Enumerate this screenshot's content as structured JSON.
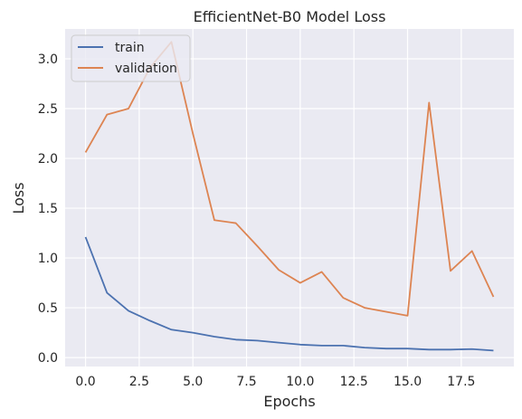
{
  "chart_data": {
    "type": "line",
    "title": "EfficientNet-B0 Model Loss",
    "xlabel": "Epochs",
    "ylabel": "Loss",
    "xlim": [
      -0.95,
      19.95
    ],
    "ylim": [
      -0.09,
      3.3
    ],
    "grid": true,
    "legend_position": "top-left",
    "background_color": "#EAEAF2",
    "grid_color": "#FFFFFF",
    "text_color": "#262626",
    "x_ticks": [
      0,
      2.5,
      5,
      7.5,
      10,
      12.5,
      15,
      17.5
    ],
    "x_tick_labels": [
      "0.0",
      "2.5",
      "5.0",
      "7.5",
      "10.0",
      "12.5",
      "15.0",
      "17.5"
    ],
    "y_ticks": [
      0,
      0.5,
      1,
      1.5,
      2,
      2.5,
      3
    ],
    "y_tick_labels": [
      "0.0",
      "0.5",
      "1.0",
      "1.5",
      "2.0",
      "2.5",
      "3.0"
    ],
    "x": [
      0,
      1,
      2,
      3,
      4,
      5,
      6,
      7,
      8,
      9,
      10,
      11,
      12,
      13,
      14,
      15,
      16,
      17,
      18,
      19
    ],
    "series": [
      {
        "name": "train",
        "color": "#4C72B0",
        "values": [
          1.21,
          0.65,
          0.47,
          0.37,
          0.28,
          0.25,
          0.21,
          0.18,
          0.17,
          0.15,
          0.13,
          0.12,
          0.12,
          0.1,
          0.09,
          0.09,
          0.08,
          0.08,
          0.085,
          0.07
        ]
      },
      {
        "name": "validation",
        "color": "#DD8452",
        "values": [
          2.06,
          2.44,
          2.5,
          2.91,
          3.17,
          2.25,
          1.38,
          1.35,
          1.12,
          0.88,
          0.75,
          0.86,
          0.6,
          0.5,
          0.46,
          0.42,
          2.56,
          0.87,
          1.07,
          0.61
        ]
      }
    ]
  }
}
